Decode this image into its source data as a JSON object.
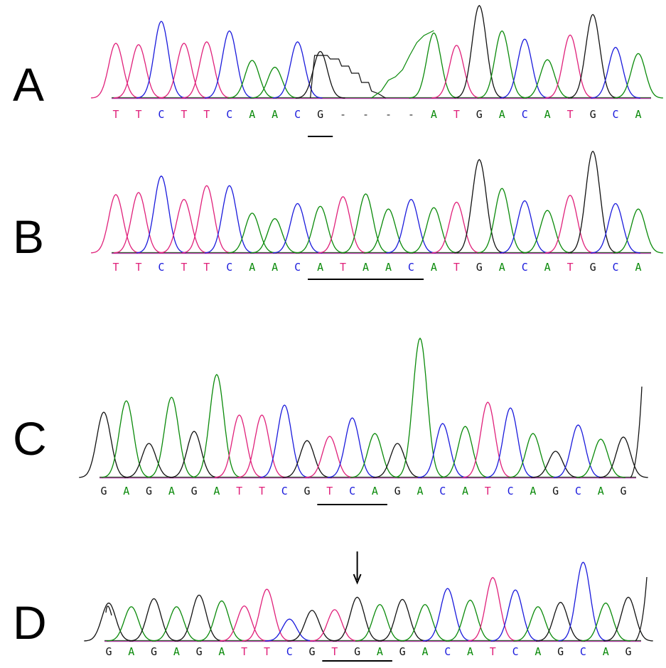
{
  "colors": {
    "A": "#0a8a0a",
    "C": "#1a1adc",
    "G": "#111111",
    "T": "#e0207a"
  },
  "chart_data": [
    {
      "type": "line",
      "panel": "A",
      "bases": [
        "T",
        "T",
        "C",
        "T",
        "T",
        "C",
        "A",
        "A",
        "C",
        "G",
        "-",
        "-",
        "-",
        "-",
        "A",
        "T",
        "G",
        "A",
        "C",
        "A",
        "T",
        "G",
        "C",
        "A"
      ],
      "peak_heights": [
        80,
        78,
        112,
        80,
        82,
        98,
        55,
        45,
        82,
        68,
        0,
        0,
        0,
        0,
        95,
        77,
        135,
        98,
        86,
        56,
        92,
        122,
        74,
        65
      ],
      "ylim": [
        0,
        140
      ],
      "underline": {
        "from": 9,
        "to": 9
      }
    },
    {
      "type": "line",
      "panel": "B",
      "bases": [
        "T",
        "T",
        "C",
        "T",
        "T",
        "C",
        "A",
        "A",
        "C",
        "A",
        "T",
        "A",
        "A",
        "C",
        "A",
        "T",
        "G",
        "A",
        "C",
        "A",
        "T",
        "G",
        "C",
        "A"
      ],
      "peak_heights": [
        85,
        88,
        112,
        78,
        98,
        98,
        58,
        50,
        72,
        68,
        82,
        86,
        64,
        78,
        66,
        74,
        136,
        94,
        76,
        62,
        84,
        148,
        72,
        64
      ],
      "ylim": [
        0,
        150
      ],
      "underline": {
        "from": 9,
        "to": 13
      }
    },
    {
      "type": "line",
      "panel": "C",
      "bases": [
        "G",
        "A",
        "G",
        "A",
        "G",
        "A",
        "T",
        "T",
        "C",
        "G",
        "T",
        "C",
        "A",
        "G",
        "A",
        "C",
        "A",
        "T",
        "C",
        "A",
        "G",
        "C",
        "A",
        "G"
      ],
      "peak_heights": [
        92,
        108,
        48,
        113,
        65,
        145,
        88,
        88,
        102,
        52,
        58,
        84,
        62,
        48,
        196,
        76,
        72,
        106,
        98,
        62,
        37,
        74,
        54,
        57
      ],
      "ylim": [
        0,
        200
      ],
      "underline": {
        "from": 10,
        "to": 12
      }
    },
    {
      "type": "line",
      "panel": "D",
      "bases": [
        "G",
        "A",
        "G",
        "A",
        "G",
        "A",
        "T",
        "T",
        "C",
        "G",
        "T",
        "G",
        "A",
        "G",
        "A",
        "C",
        "A",
        "T",
        "C",
        "A",
        "G",
        "C",
        "A",
        "G"
      ],
      "peak_heights": [
        52,
        47,
        58,
        47,
        63,
        55,
        48,
        71,
        30,
        42,
        43,
        60,
        50,
        57,
        50,
        72,
        56,
        87,
        70,
        47,
        53,
        108,
        52,
        60
      ],
      "ylim": [
        0,
        115
      ],
      "underline": {
        "from": 10,
        "to": 12
      },
      "arrow_at": 11
    }
  ],
  "panels": {
    "A": {
      "label": "A"
    },
    "B": {
      "label": "B"
    },
    "C": {
      "label": "C"
    },
    "D": {
      "label": "D"
    }
  }
}
